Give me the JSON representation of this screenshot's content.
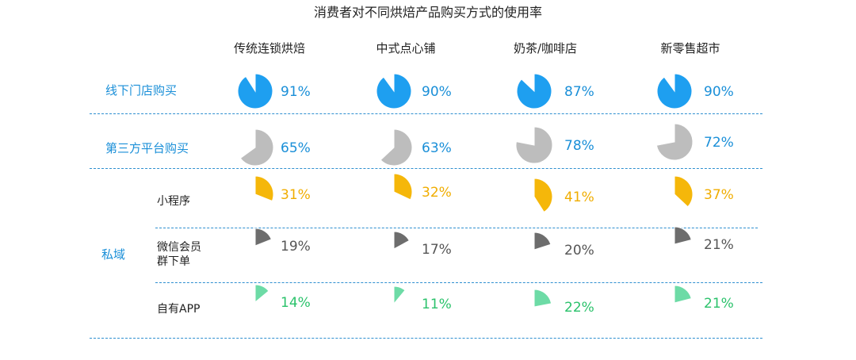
{
  "chart_data": {
    "type": "pie",
    "title": "消费者对不同烘焙产品购买方式的使用率",
    "columns": [
      "传统连锁烘焙",
      "中式点心铺",
      "奶茶/咖啡店",
      "新零售超市"
    ],
    "group_label": "私域",
    "rows": [
      {
        "label": "线下门店购买",
        "color": "#1e9ff0",
        "text_color": "#1a8fd8",
        "values": [
          91,
          90,
          87,
          90
        ],
        "labels": [
          "91%",
          "90%",
          "87%",
          "90%"
        ]
      },
      {
        "label": "第三方平台购买",
        "color": "#bdbdbd",
        "text_color": "#1a8fd8",
        "values": [
          65,
          63,
          78,
          72
        ],
        "labels": [
          "65%",
          "63%",
          "78%",
          "72%"
        ]
      },
      {
        "label": "小程序",
        "color": "#f5b70a",
        "text_color": "#f0ad00",
        "values": [
          31,
          32,
          41,
          37
        ],
        "labels": [
          "31%",
          "32%",
          "41%",
          "37%"
        ]
      },
      {
        "label": "微信会员\n群下单",
        "label_lines": [
          "微信会员",
          "群下单"
        ],
        "color": "#6d6d6d",
        "text_color": "#555555",
        "values": [
          19,
          17,
          20,
          21
        ],
        "labels": [
          "19%",
          "17%",
          "20%",
          "21%"
        ]
      },
      {
        "label": "自有APP",
        "color": "#6ddba6",
        "text_color": "#2bc26b",
        "values": [
          14,
          11,
          22,
          21
        ],
        "labels": [
          "14%",
          "11%",
          "22%",
          "21%"
        ]
      }
    ]
  }
}
